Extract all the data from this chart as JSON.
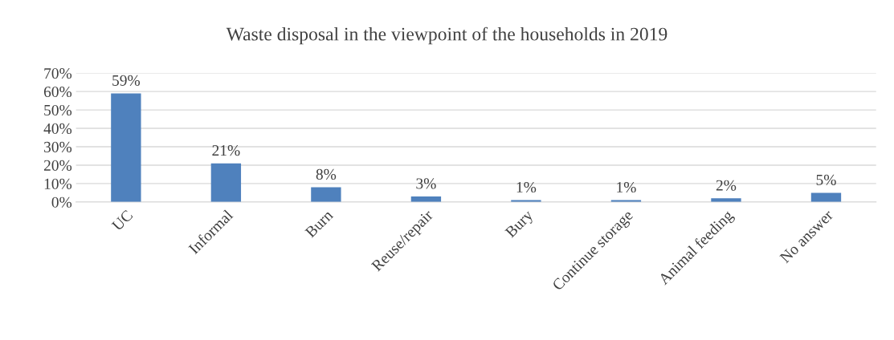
{
  "chart_data": {
    "type": "bar",
    "title": "Waste disposal in the viewpoint of the households in 2019",
    "categories": [
      "UC",
      "Informal",
      "Burn",
      "Reuse/repair",
      "Bury",
      "Continue storage",
      "Animal feeding",
      "No answer"
    ],
    "values": [
      59,
      21,
      8,
      3,
      1,
      1,
      2,
      5
    ],
    "value_labels": [
      "59%",
      "21%",
      "8%",
      "3%",
      "1%",
      "1%",
      "2%",
      "5%"
    ],
    "color": "#4f81bd",
    "ylim": [
      0,
      70
    ],
    "yticks": [
      {
        "value": 0,
        "label": "0%"
      },
      {
        "value": 10,
        "label": "10%"
      },
      {
        "value": 20,
        "label": "20%"
      },
      {
        "value": 30,
        "label": "30%"
      },
      {
        "value": 40,
        "label": "40%"
      },
      {
        "value": 50,
        "label": "50%"
      },
      {
        "value": 60,
        "label": "60%"
      },
      {
        "value": 70,
        "label": "70%"
      }
    ],
    "grid": "y",
    "legend": false
  }
}
